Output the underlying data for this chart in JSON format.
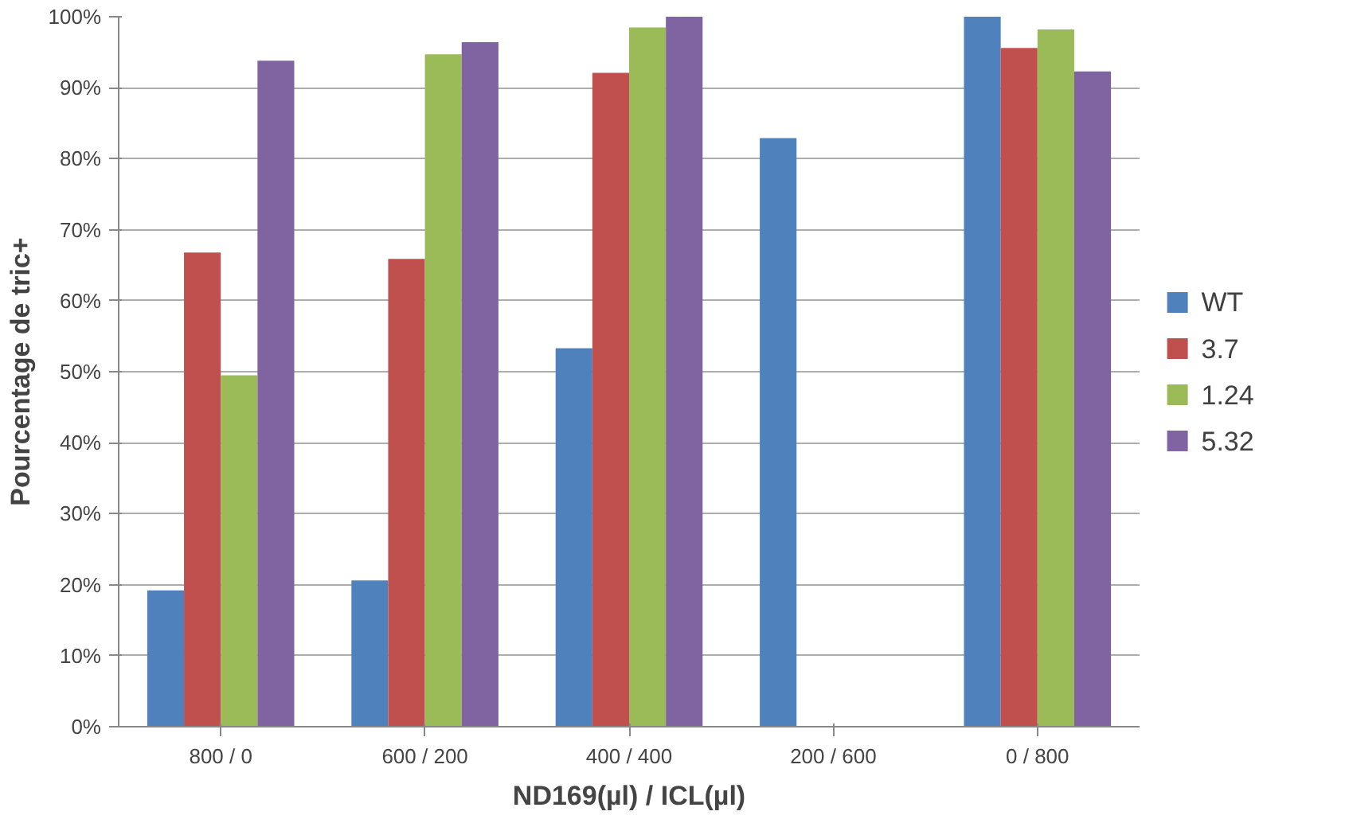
{
  "chart_data": {
    "type": "bar",
    "xlabel": "ND169(µl) / ICL(µl)",
    "ylabel": "Pourcentage de tric+",
    "categories": [
      "800 / 0",
      "600 / 200",
      "400 / 400",
      "200 / 600",
      "0 / 800"
    ],
    "series": [
      {
        "name": "WT",
        "color": "#4f81bd",
        "values": [
          19.2,
          20.6,
          53.3,
          82.9,
          100
        ]
      },
      {
        "name": "3.7",
        "color": "#c0504d",
        "values": [
          66.8,
          65.9,
          92.1,
          null,
          95.6
        ]
      },
      {
        "name": "1.24",
        "color": "#9bbb59",
        "values": [
          49.5,
          94.7,
          98.5,
          null,
          98.2
        ]
      },
      {
        "name": "5.32",
        "color": "#8064a2",
        "values": [
          93.8,
          96.4,
          100,
          null,
          92.3
        ]
      }
    ],
    "ylim": [
      0,
      100
    ],
    "yticks": [
      {
        "value": 0,
        "label": "0%"
      },
      {
        "value": 10,
        "label": "10%"
      },
      {
        "value": 20,
        "label": "20%"
      },
      {
        "value": 30,
        "label": "30%"
      },
      {
        "value": 40,
        "label": "40%"
      },
      {
        "value": 50,
        "label": "50%"
      },
      {
        "value": 60,
        "label": "60%"
      },
      {
        "value": 70,
        "label": "70%"
      },
      {
        "value": 80,
        "label": "80%"
      },
      {
        "value": 90,
        "label": "90%"
      },
      {
        "value": 100,
        "label": "100%"
      }
    ],
    "grid": "y",
    "legend": "right"
  }
}
